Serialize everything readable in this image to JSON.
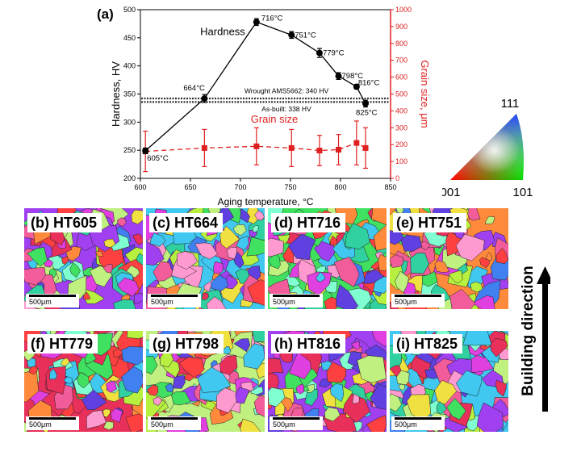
{
  "chart_data": {
    "panel_label": "(a)",
    "type": "line",
    "xlabel": "Aging temperature, °C",
    "ylabel_left": "Hardness, HV",
    "ylabel_right": "Grain size, μm",
    "xlim": [
      600,
      850
    ],
    "ylim_left": [
      200,
      500
    ],
    "ylim_right": [
      0,
      1000
    ],
    "x_ticks": [
      "600",
      "650",
      "700",
      "750",
      "800",
      "850"
    ],
    "y_ticks_left": [
      "200",
      "250",
      "300",
      "350",
      "400",
      "450",
      "500"
    ],
    "y_ticks_right": [
      "0",
      "100",
      "200",
      "300",
      "400",
      "500",
      "600",
      "700",
      "800",
      "900",
      "1000"
    ],
    "series": [
      {
        "name": "Hardness",
        "color": "#000000",
        "axis": "left",
        "x": [
          605,
          664,
          716,
          751,
          779,
          798,
          816,
          825
        ],
        "y": [
          249,
          342,
          478,
          455,
          423,
          382,
          363,
          333
        ],
        "err": [
          5,
          7,
          6,
          6,
          8,
          6,
          4,
          6
        ],
        "point_labels": [
          "605°C",
          "664°C",
          "716°C",
          "751°C",
          "779°C",
          "798°C",
          "816°C",
          "825°C"
        ]
      },
      {
        "name": "Grain size",
        "color": "#e02020",
        "axis": "right",
        "x": [
          605,
          664,
          716,
          751,
          779,
          798,
          816,
          825
        ],
        "y": [
          160,
          180,
          190,
          180,
          165,
          170,
          210,
          180
        ],
        "err": [
          120,
          110,
          110,
          110,
          90,
          90,
          130,
          120
        ]
      }
    ],
    "reference_lines": [
      {
        "label": "Wrought AMS5662: 340 HV",
        "y": 340
      },
      {
        "label": "As-built: 338 HV",
        "y": 338
      }
    ]
  },
  "ipf_key": {
    "top": "111",
    "bottom_left": "001",
    "bottom_right": "101"
  },
  "ebsd_maps": [
    {
      "label": "(b) HT605",
      "scale": "500μm"
    },
    {
      "label": "(c) HT664",
      "scale": "500μm"
    },
    {
      "label": "(d) HT716",
      "scale": "500μm"
    },
    {
      "label": "(e) HT751",
      "scale": "500μm"
    },
    {
      "label": "(f) HT779",
      "scale": "500μm"
    },
    {
      "label": "(g) HT798",
      "scale": "500μm"
    },
    {
      "label": "(h) HT816",
      "scale": "500μm"
    },
    {
      "label": "(i) HT825",
      "scale": "500μm"
    }
  ],
  "build_direction": "Building direction"
}
